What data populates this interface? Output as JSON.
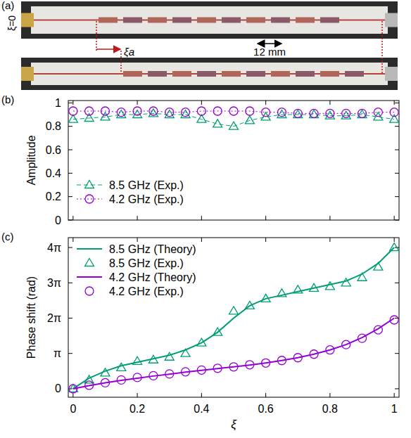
{
  "panel_a": {
    "label": "(a)",
    "xi_zero": "ξ=0",
    "shift": "ξa",
    "period": "12 mm"
  },
  "chart_data": [
    {
      "type": "line",
      "title": "(b)",
      "y_label": "Amplitude",
      "x": [
        0,
        0.05,
        0.1,
        0.15,
        0.2,
        0.25,
        0.3,
        0.35,
        0.4,
        0.45,
        0.5,
        0.55,
        0.6,
        0.65,
        0.7,
        0.75,
        0.8,
        0.85,
        0.9,
        0.95,
        1
      ],
      "xlim": [
        -0.015,
        1.015
      ],
      "xticks": [
        0,
        0.2,
        0.4,
        0.6,
        0.8,
        1
      ],
      "ylim": [
        0,
        1.02
      ],
      "yticks": [
        0,
        0.2,
        0.4,
        0.6,
        0.8,
        1
      ],
      "tick_labels": "y",
      "legend": "lower left",
      "series": [
        {
          "name": "8.5 GHz (Exp.)",
          "color": "#009e73",
          "marker": "triangle",
          "line_style": "dashed",
          "values": [
            0.86,
            0.87,
            0.88,
            0.9,
            0.9,
            0.91,
            0.9,
            0.9,
            0.86,
            0.82,
            0.8,
            0.85,
            0.88,
            0.9,
            0.9,
            0.9,
            0.89,
            0.89,
            0.9,
            0.88,
            0.86
          ]
        },
        {
          "name": "4.2 GHz (Exp.)",
          "color": "#9400d3",
          "marker": "circle",
          "line_style": "dotted",
          "values": [
            0.93,
            0.93,
            0.93,
            0.92,
            0.93,
            0.93,
            0.92,
            0.92,
            0.93,
            0.93,
            0.93,
            0.93,
            0.92,
            0.92,
            0.91,
            0.91,
            0.91,
            0.91,
            0.91,
            0.92,
            0.92
          ]
        }
      ]
    },
    {
      "type": "line",
      "title": "(c)",
      "x_label": "ξ",
      "y_label": "Phase shift (rad)",
      "x": [
        0,
        0.05,
        0.1,
        0.15,
        0.2,
        0.25,
        0.3,
        0.35,
        0.4,
        0.45,
        0.5,
        0.55,
        0.6,
        0.65,
        0.7,
        0.75,
        0.8,
        0.85,
        0.9,
        0.95,
        1
      ],
      "xlim": [
        -0.015,
        1.015
      ],
      "xticks": [
        0,
        0.2,
        0.4,
        0.6,
        0.8,
        1
      ],
      "ylim": [
        -0.754,
        13.446
      ],
      "yticks": [
        0,
        {
          "value": 3.14159,
          "label": "π"
        },
        {
          "value": 6.28319,
          "label": "2π"
        },
        {
          "value": 9.42478,
          "label": "3π"
        },
        {
          "value": 12.56637,
          "label": "4π"
        }
      ],
      "legend": "upper left",
      "series": [
        {
          "name": "8.5 GHz (Theory)",
          "color": "#009e73",
          "marker": "none",
          "line_style": "solid",
          "values": [
            0,
            0.942,
            1.571,
            2.042,
            2.356,
            2.67,
            2.985,
            3.456,
            4.084,
            5.027,
            6.283,
            7.383,
            8.011,
            8.325,
            8.639,
            8.954,
            9.268,
            9.582,
            10.21,
            11.153,
            12.566
          ]
        },
        {
          "name": "8.5 GHz (Exp.)",
          "color": "#009e73",
          "marker": "triangle",
          "line_style": "none",
          "values": [
            0,
            0.785,
            1.414,
            1.885,
            2.45,
            2.576,
            2.827,
            3.142,
            4.084,
            5.027,
            6.912,
            7.383,
            8.011,
            8.482,
            8.796,
            8.954,
            9.111,
            9.425,
            9.896,
            10.838,
            12.566
          ]
        },
        {
          "name": "4.2 GHz (Theory)",
          "color": "#9400d3",
          "marker": "none",
          "line_style": "solid",
          "values": [
            0,
            0.283,
            0.534,
            0.754,
            0.942,
            1.131,
            1.288,
            1.477,
            1.634,
            1.791,
            1.948,
            2.105,
            2.293,
            2.513,
            2.765,
            3.079,
            3.456,
            3.927,
            4.555,
            5.341,
            6.283
          ]
        },
        {
          "name": "4.2 GHz (Exp.)",
          "color": "#9400d3",
          "marker": "circle",
          "line_style": "none",
          "values": [
            0,
            0.314,
            0.534,
            0.785,
            1.005,
            1.162,
            1.319,
            1.508,
            1.665,
            1.822,
            1.948,
            2.136,
            2.293,
            2.513,
            2.765,
            3.079,
            3.456,
            3.927,
            4.492,
            5.246,
            6.126
          ]
        }
      ]
    }
  ]
}
